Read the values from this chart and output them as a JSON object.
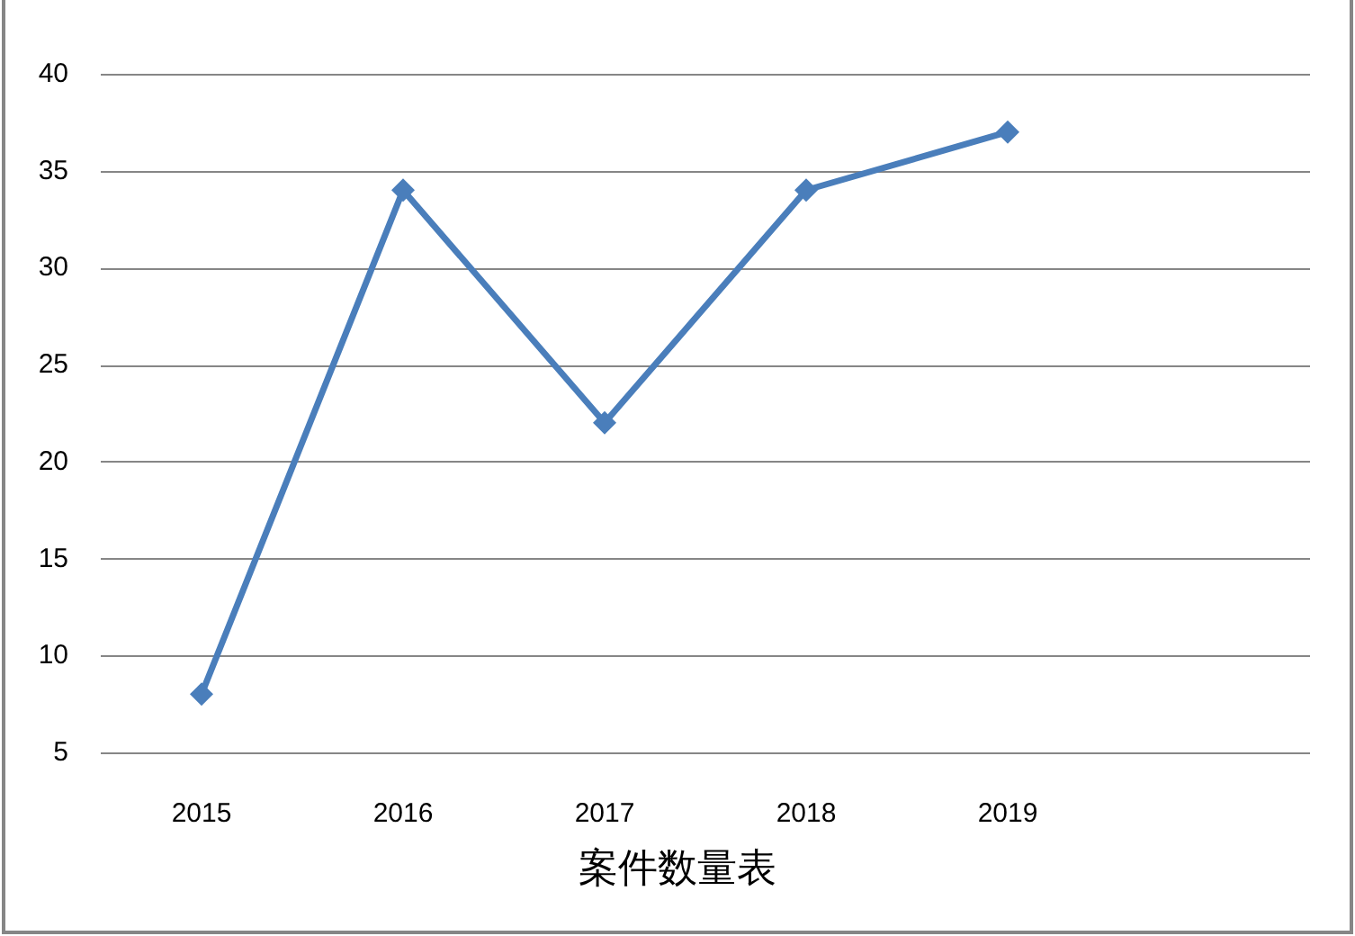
{
  "chart_data": {
    "type": "line",
    "xlabel": "案件数量表",
    "categories": [
      "2015",
      "2016",
      "2017",
      "2018",
      "2019",
      null
    ],
    "series": [
      {
        "color": "#4a7ebb",
        "values": [
          8,
          34,
          22,
          34,
          37,
          null
        ]
      }
    ],
    "ylim": [
      5,
      40
    ],
    "yticks": [
      5,
      10,
      15,
      20,
      25,
      30,
      35,
      40
    ],
    "grid": "y",
    "marker": "diamond",
    "line_style": "solid"
  }
}
